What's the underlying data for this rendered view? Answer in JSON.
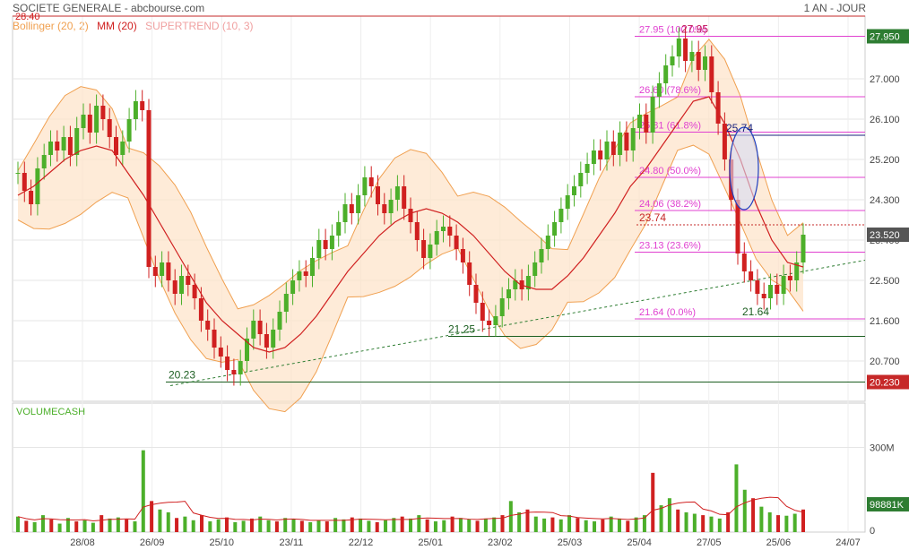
{
  "header": {
    "title": "SOCIETE GENERALE - abcbourse.com",
    "period": "1 AN - JOUR"
  },
  "legend": {
    "bollinger": "Bollinger (20, 2)",
    "bollinger_color": "#f0a050",
    "mm": "MM (20)",
    "mm_color": "#d02020",
    "supertrend": "SUPERTREND (10, 3)",
    "supertrend_color": "#f0a0a0"
  },
  "colors": {
    "up": "#4caf2a",
    "down": "#d02020",
    "fib": "#e040d0",
    "band_fill": "#fde3c8"
  },
  "chart_data": [
    {
      "type": "candlestick",
      "title": "SOCIETE GENERALE",
      "x_tick_labels": [
        "28/08",
        "26/09",
        "25/10",
        "23/11",
        "22/12",
        "25/01",
        "23/02",
        "25/03",
        "25/04",
        "27/05",
        "25/06",
        "24/07"
      ],
      "y_ticks": [
        27.0,
        26.1,
        25.2,
        24.3,
        23.4,
        22.5,
        21.6,
        20.7
      ],
      "y_tick_labels": [
        "27.000",
        "26.100",
        "25.200",
        "24.300",
        "23.400",
        "22.500",
        "21.600",
        "20.700"
      ],
      "ylim": [
        19.8,
        28.4
      ],
      "price_tags": [
        {
          "label": "28.40",
          "value": 28.4,
          "color": "#d02020",
          "side": "left"
        },
        {
          "label": "27.950",
          "value": 27.95,
          "color": "#2e7d32",
          "side": "right",
          "filled": true
        },
        {
          "label": "23.520",
          "value": 23.52,
          "color": "#555555",
          "side": "right",
          "filled": true
        },
        {
          "label": "20.230",
          "value": 20.23,
          "color": "#c62828",
          "side": "right",
          "filled": true
        }
      ],
      "fibonacci": [
        {
          "label": "27.95  (100.0%)",
          "value": 27.95
        },
        {
          "label": "26.60  (78.6%)",
          "value": 26.6
        },
        {
          "label": "25.81  (61.8%)",
          "value": 25.81
        },
        {
          "label": "24.80  (50.0%)",
          "value": 24.8
        },
        {
          "label": "24.06  (38.2%)",
          "value": 24.06
        },
        {
          "label": "23.13  (23.6%)",
          "value": 23.13
        },
        {
          "label": "21.64  (0.0%)",
          "value": 21.64
        }
      ],
      "annotations": [
        {
          "text": "27.95",
          "value": 27.95,
          "color": "#c2185b"
        },
        {
          "text": "25.74",
          "value": 25.74,
          "color": "#1a237e"
        },
        {
          "text": "23.74",
          "value": 23.74,
          "color": "#c62828"
        },
        {
          "text": "21.64",
          "value": 21.64,
          "color": "#1b5e20"
        },
        {
          "text": "21.25",
          "value": 21.25,
          "color": "#1b5e20"
        },
        {
          "text": "20.23",
          "value": 20.23,
          "color": "#1b5e20"
        }
      ],
      "horizontal_lines": [
        {
          "value": 28.4,
          "color": "#c62828",
          "style": "solid"
        },
        {
          "value": 25.74,
          "color": "#1a237e",
          "style": "solid"
        },
        {
          "value": 23.74,
          "color": "#c62828",
          "style": "dotted"
        },
        {
          "value": 21.25,
          "color": "#1b5e20",
          "style": "solid"
        },
        {
          "value": 20.23,
          "color": "#1b5e20",
          "style": "solid"
        }
      ],
      "close_series": [
        24.9,
        24.5,
        24.2,
        25.0,
        25.3,
        25.6,
        25.4,
        25.7,
        25.3,
        25.9,
        26.2,
        25.8,
        26.4,
        26.1,
        25.7,
        25.3,
        25.6,
        26.1,
        26.5,
        26.3,
        22.8,
        22.6,
        22.9,
        22.5,
        22.2,
        22.6,
        22.4,
        22.1,
        21.6,
        21.4,
        21.0,
        20.8,
        20.5,
        20.4,
        20.7,
        21.2,
        21.6,
        21.3,
        21.0,
        21.4,
        21.8,
        22.2,
        22.5,
        22.7,
        22.6,
        23.0,
        23.4,
        23.2,
        23.5,
        23.8,
        24.2,
        24.0,
        24.4,
        24.8,
        24.6,
        24.2,
        24.0,
        24.3,
        24.6,
        24.1,
        23.8,
        23.4,
        23.0,
        23.3,
        23.6,
        23.7,
        23.5,
        23.2,
        22.9,
        22.4,
        22.0,
        21.6,
        21.5,
        21.7,
        22.1,
        22.3,
        22.5,
        22.3,
        22.6,
        22.9,
        23.2,
        23.5,
        23.8,
        24.1,
        24.4,
        24.6,
        24.9,
        25.1,
        25.4,
        25.2,
        25.6,
        25.3,
        25.8,
        25.4,
        25.9,
        26.2,
        25.8,
        26.6,
        26.9,
        27.3,
        27.5,
        27.9,
        27.4,
        27.6,
        27.2,
        27.5,
        26.7,
        26.0,
        25.2,
        24.3,
        23.1,
        22.7,
        22.5,
        22.2,
        22.1,
        22.4,
        22.2,
        22.6,
        22.5,
        22.9,
        23.52
      ],
      "mm20_series": [
        24.4,
        24.6,
        24.9,
        25.2,
        25.4,
        25.5,
        25.4,
        24.9,
        24.4,
        23.8,
        23.2,
        22.6,
        22.0,
        21.6,
        21.3,
        21.0,
        20.9,
        21.0,
        21.3,
        21.7,
        22.2,
        22.7,
        23.1,
        23.5,
        23.8,
        24.0,
        24.1,
        24.0,
        23.8,
        23.5,
        23.1,
        22.7,
        22.4,
        22.3,
        22.3,
        22.6,
        23.0,
        23.5,
        24.0,
        24.6,
        25.0,
        25.5,
        26.0,
        26.5,
        26.6,
        26.0,
        25.2,
        24.2,
        23.4,
        22.9,
        22.8
      ],
      "volume": {
        "label": "VOLUMECASH",
        "tick_labels": [
          "300M",
          "0"
        ],
        "tag": "98881K",
        "max_scale": 400,
        "series": [
          55,
          40,
          35,
          60,
          45,
          30,
          50,
          38,
          42,
          33,
          60,
          48,
          52,
          45,
          38,
          290,
          110,
          80,
          70,
          50,
          55,
          42,
          60,
          38,
          45,
          52,
          35,
          40,
          48,
          55,
          42,
          38,
          50,
          45,
          40,
          35,
          42,
          38,
          50,
          45,
          52,
          48,
          40,
          35,
          42,
          50,
          55,
          48,
          60,
          45,
          38,
          42,
          55,
          50,
          45,
          40,
          48,
          52,
          60,
          110,
          70,
          80,
          55,
          48,
          52,
          45,
          60,
          50,
          42,
          38,
          45,
          55,
          48,
          40,
          52,
          60,
          210,
          95,
          120,
          80,
          70,
          65,
          60,
          55,
          48,
          70,
          240,
          150,
          120,
          90,
          70,
          60,
          58,
          65,
          80
        ]
      }
    }
  ]
}
